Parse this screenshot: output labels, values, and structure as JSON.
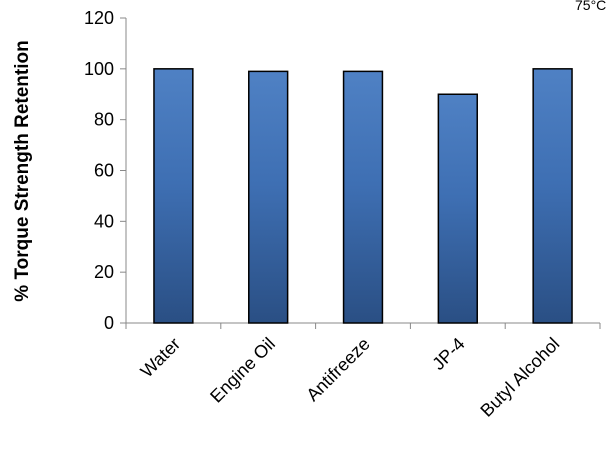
{
  "chart_data": {
    "type": "bar",
    "categories": [
      "Water",
      "Engine Oil",
      "Antifreeze",
      "JP-4",
      "Butyl Alcohol"
    ],
    "values": [
      100,
      99,
      99,
      90,
      100
    ],
    "title": "",
    "xlabel": "",
    "ylabel": "% Torque Strength Retention",
    "ylim": [
      0,
      120
    ],
    "yticks": [
      0,
      20,
      40,
      60,
      80,
      100,
      120
    ],
    "grid": false,
    "legend": "none",
    "corner_note": "75°C",
    "colors": {
      "bar_top": "#4f81c4",
      "bar_mid": "#3e6fb3",
      "bar_bottom": "#2a4f84",
      "bar_stroke": "#000000",
      "axis": "#888888"
    }
  }
}
